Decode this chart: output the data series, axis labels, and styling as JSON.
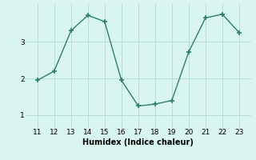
{
  "x": [
    11,
    12,
    13,
    14,
    15,
    16,
    17,
    18,
    19,
    20,
    21,
    22,
    23
  ],
  "y": [
    1.95,
    2.2,
    3.3,
    3.72,
    3.55,
    1.95,
    1.25,
    1.3,
    1.4,
    2.72,
    3.65,
    3.75,
    3.25
  ],
  "line_color": "#2e7d6e",
  "marker": "+",
  "marker_size": 4,
  "marker_linewidth": 1.2,
  "line_width": 1.0,
  "linestyle": "-",
  "xlabel": "Humidex (Indice chaleur)",
  "xlabel_fontsize": 7,
  "xlabel_fontweight": "bold",
  "background_color": "#d8f5f0",
  "grid_color": "#b8ddd8",
  "yticks": [
    1,
    2,
    3
  ],
  "xticks": [
    11,
    12,
    13,
    14,
    15,
    16,
    17,
    18,
    19,
    20,
    21,
    22,
    23
  ],
  "ylim": [
    0.65,
    4.05
  ],
  "xlim": [
    10.3,
    23.7
  ],
  "tick_labelsize": 6.5
}
